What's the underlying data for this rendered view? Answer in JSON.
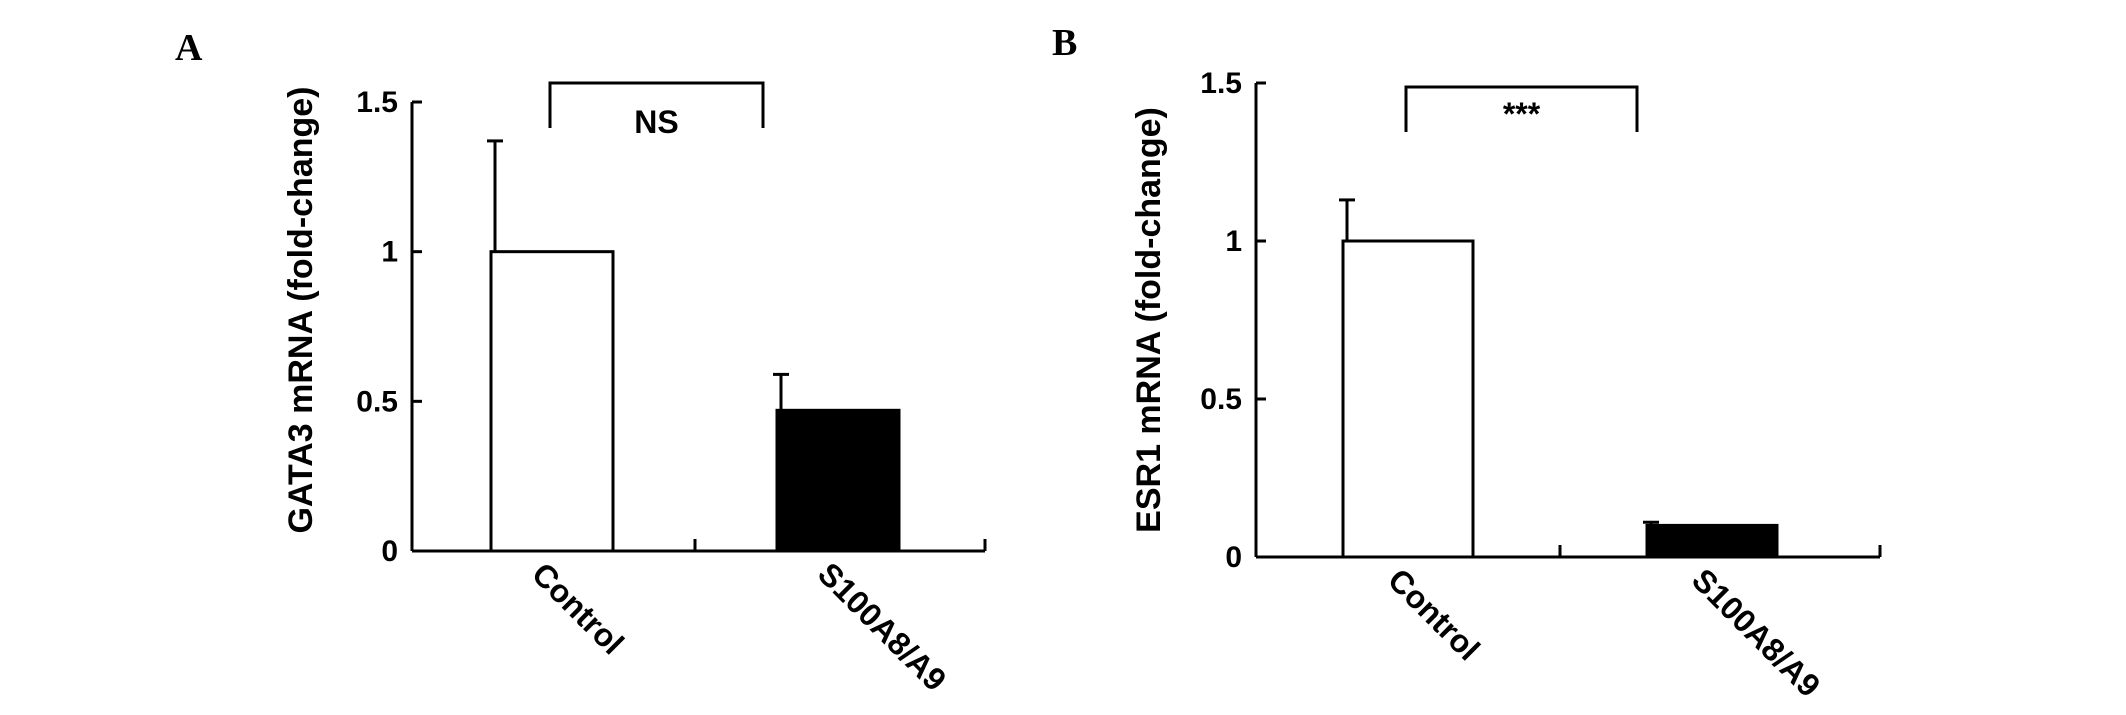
{
  "chart_data": [
    {
      "type": "bar",
      "panel_label": "A",
      "ylabel": "GATA3  mRNA (fold-change)",
      "categories": [
        "Control",
        "S100A8/A9"
      ],
      "values": [
        1.0,
        0.47
      ],
      "errors": [
        0.37,
        0.12
      ],
      "bar_colors": [
        "#ffffff",
        "#000000"
      ],
      "ylim": [
        0,
        1.5
      ],
      "yticks": [
        "0",
        "0.5",
        "1",
        "1.5"
      ],
      "significance": "NS",
      "grid": false
    },
    {
      "type": "bar",
      "panel_label": "B",
      "ylabel": "ESR1 mRNA (fold-change)",
      "categories": [
        "Control",
        "S100A8/A9"
      ],
      "values": [
        1.0,
        0.1
      ],
      "errors": [
        0.13,
        0.01
      ],
      "bar_colors": [
        "#ffffff",
        "#000000"
      ],
      "ylim": [
        0,
        1.5
      ],
      "yticks": [
        "0",
        "0.5",
        "1",
        "1.5"
      ],
      "significance": "***",
      "grid": false
    }
  ]
}
